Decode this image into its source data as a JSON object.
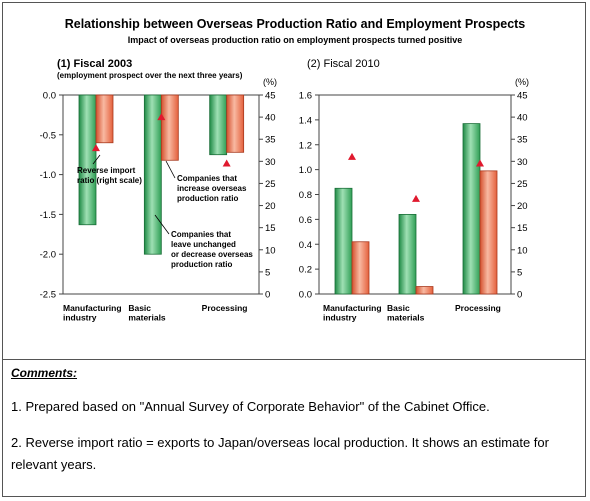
{
  "title": "Relationship between Overseas Production Ratio and Employment Prospects",
  "subtitle": "Impact of overseas production ratio on employment prospects turned positive",
  "series_colors": {
    "unchanged_or_decrease": "#2f9e55",
    "increase": "#e4603c",
    "reverse_import": "#e0192e"
  },
  "chart_data": [
    {
      "type": "bar",
      "title": "(1)  Fiscal 2003",
      "subtitle": "(employment prospect over the next three years)",
      "categories": [
        "Manufacturing industry",
        "Basic materials",
        "Processing"
      ],
      "ylim": [
        -2.5,
        0.0
      ],
      "yticks": [
        "0.0",
        "-0.5",
        "-1.0",
        "-1.5",
        "-2.0",
        "-2.5"
      ],
      "y2lim": [
        0,
        45
      ],
      "y2ticks": [
        "45",
        "40",
        "35",
        "30",
        "25",
        "20",
        "15",
        "10",
        "5",
        "0"
      ],
      "y2label": "(%)",
      "series": [
        {
          "key": "unchanged_or_decrease",
          "values": [
            -1.63,
            -2.0,
            -0.75
          ]
        },
        {
          "key": "increase",
          "values": [
            -0.6,
            -0.82,
            -0.72
          ]
        }
      ],
      "markers": {
        "key": "reverse_import",
        "axis": "right",
        "values": [
          33,
          40,
          29.5
        ]
      },
      "annotations": [
        "Reverse import\nratio (right scale)",
        "Companies that\nincrease overseas\nproduction ratio",
        "Companies that\nleave unchanged\nor decrease overseas\nproduction ratio"
      ]
    },
    {
      "type": "bar",
      "title": "(2)  Fiscal 2010",
      "categories": [
        "Manufacturing industry",
        "Basic materials",
        "Processing"
      ],
      "ylim": [
        0.0,
        1.6
      ],
      "yticks": [
        "1.6",
        "1.4",
        "1.2",
        "1.0",
        "0.8",
        "0.6",
        "0.4",
        "0.2",
        "0.0"
      ],
      "y2lim": [
        0,
        45
      ],
      "y2ticks": [
        "45",
        "40",
        "35",
        "30",
        "25",
        "20",
        "15",
        "10",
        "5",
        "0"
      ],
      "y2label": "(%)",
      "series": [
        {
          "key": "unchanged_or_decrease",
          "values": [
            0.85,
            0.64,
            1.37
          ]
        },
        {
          "key": "increase",
          "values": [
            0.42,
            0.06,
            0.99
          ]
        }
      ],
      "markers": {
        "key": "reverse_import",
        "axis": "right",
        "values": [
          31,
          21.5,
          29.5
        ]
      }
    }
  ],
  "comments": {
    "title": "Comments:",
    "note1": "1. Prepared based on \"Annual Survey of Corporate Behavior\" of the Cabinet Office.",
    "note2": "2. Reverse import ratio = exports to Japan/overseas local production. It shows an estimate for relevant years."
  }
}
